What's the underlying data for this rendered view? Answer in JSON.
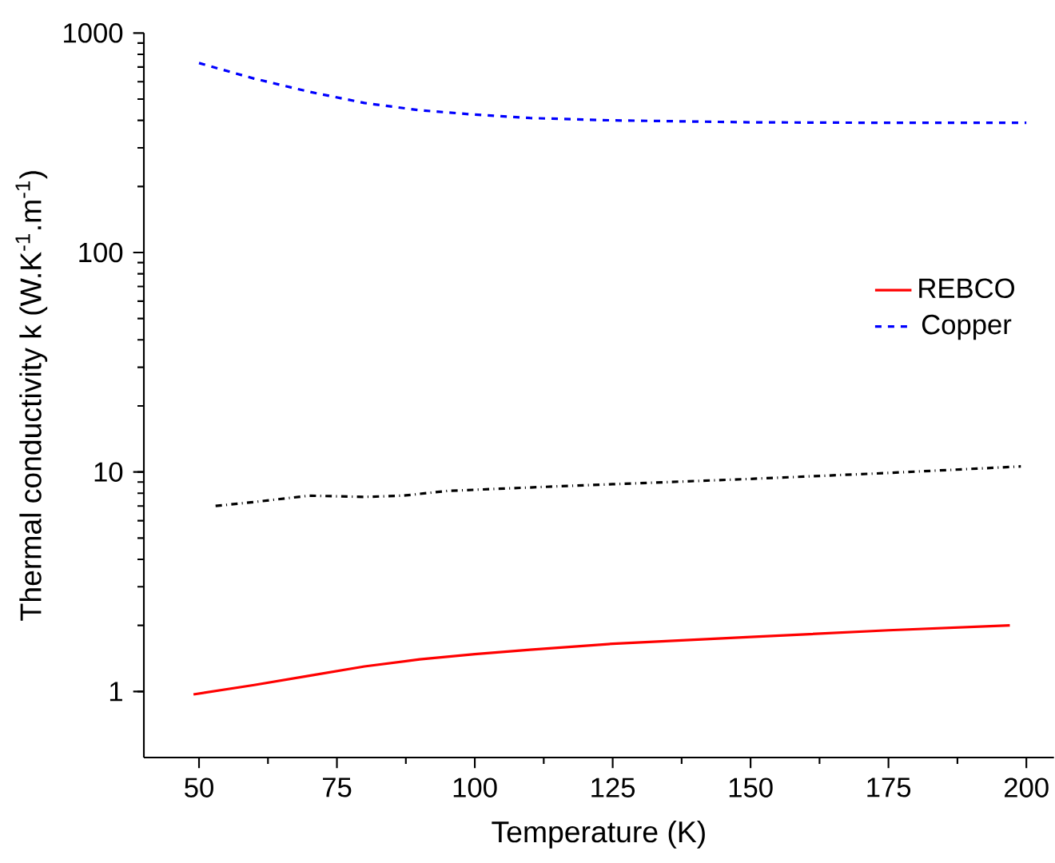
{
  "chart_data": {
    "type": "line",
    "xlabel": "Temperature (K)",
    "ylabel": "Thermal conductivity k (W.K$^{-1}$.m$^{-1}$)",
    "log": "y",
    "xlim": [
      40,
      205
    ],
    "ylim": [
      0.5,
      1000
    ],
    "xticks": [
      50,
      75,
      100,
      125,
      150,
      175,
      200
    ],
    "yticks": [
      1,
      10,
      100,
      1000
    ],
    "legend": "right",
    "grid": false,
    "series": [
      {
        "name": "REBCO",
        "color": "#ff0000",
        "line_style": "solid",
        "x": [
          49,
          60,
          70,
          80,
          90,
          100,
          110,
          125,
          150,
          175,
          197
        ],
        "values": [
          0.97,
          1.07,
          1.18,
          1.3,
          1.4,
          1.48,
          1.55,
          1.65,
          1.77,
          1.9,
          2.0
        ]
      },
      {
        "name": "Copper",
        "color": "#0000ff",
        "line_style": "dashed",
        "x": [
          50,
          60,
          70,
          80,
          90,
          100,
          110,
          125,
          150,
          175,
          200
        ],
        "values": [
          730,
          620,
          540,
          480,
          445,
          425,
          410,
          400,
          392,
          390,
          390
        ]
      },
      {
        "color": "#000000",
        "line_style": "dashdot",
        "x": [
          53,
          60,
          70,
          80,
          87,
          95,
          110,
          125,
          150,
          175,
          199
        ],
        "values": [
          7.0,
          7.3,
          7.8,
          7.7,
          7.8,
          8.2,
          8.5,
          8.8,
          9.3,
          9.9,
          10.6
        ]
      }
    ]
  }
}
